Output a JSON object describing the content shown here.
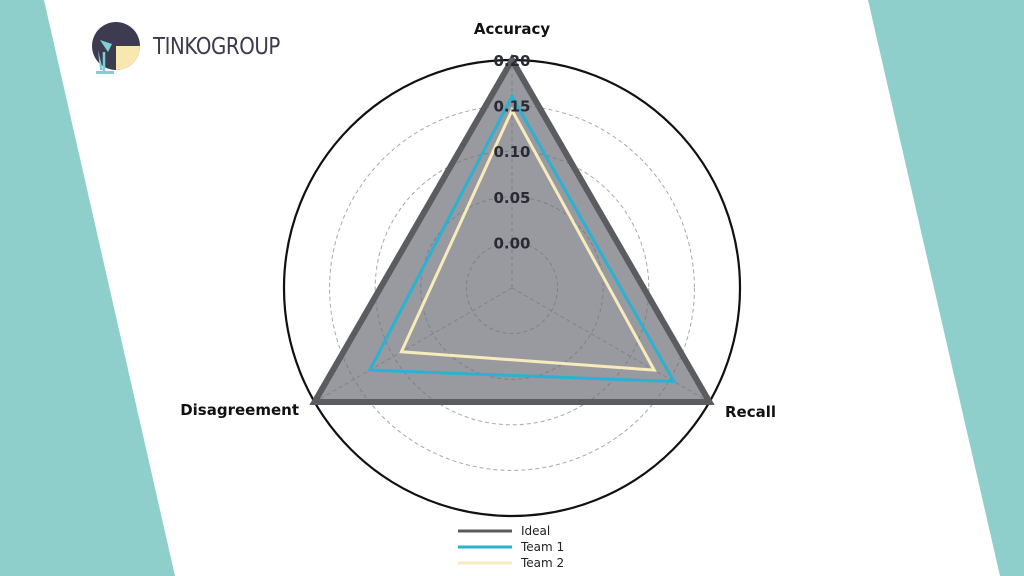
{
  "brand": {
    "name": "TINKOGROUP",
    "colors": {
      "teal": "#8ecfcb",
      "dark": "#3d3b4f",
      "lamp": "#f8e8b0",
      "shade": "#7fd0d6"
    }
  },
  "chart_data": {
    "type": "radar",
    "axes": [
      "Accuracy",
      "Recall",
      "Disagreement"
    ],
    "radial_ticks": [
      "0.00",
      "0.05",
      "0.10",
      "0.15",
      "0.20"
    ],
    "rlim": [
      -0.05,
      0.2
    ],
    "grid": true,
    "legend_position": "bottom-center",
    "series": [
      {
        "name": "Ideal",
        "values": [
          0.2,
          0.2,
          0.2
        ],
        "color": "#5b5b62",
        "fill": "#6e6e78"
      },
      {
        "name": "Team 1",
        "values": [
          0.16,
          0.155,
          0.13
        ],
        "color": "#29b2d2"
      },
      {
        "name": "Team 2",
        "values": [
          0.145,
          0.13,
          0.09
        ],
        "color": "#f8ebbb"
      }
    ]
  }
}
